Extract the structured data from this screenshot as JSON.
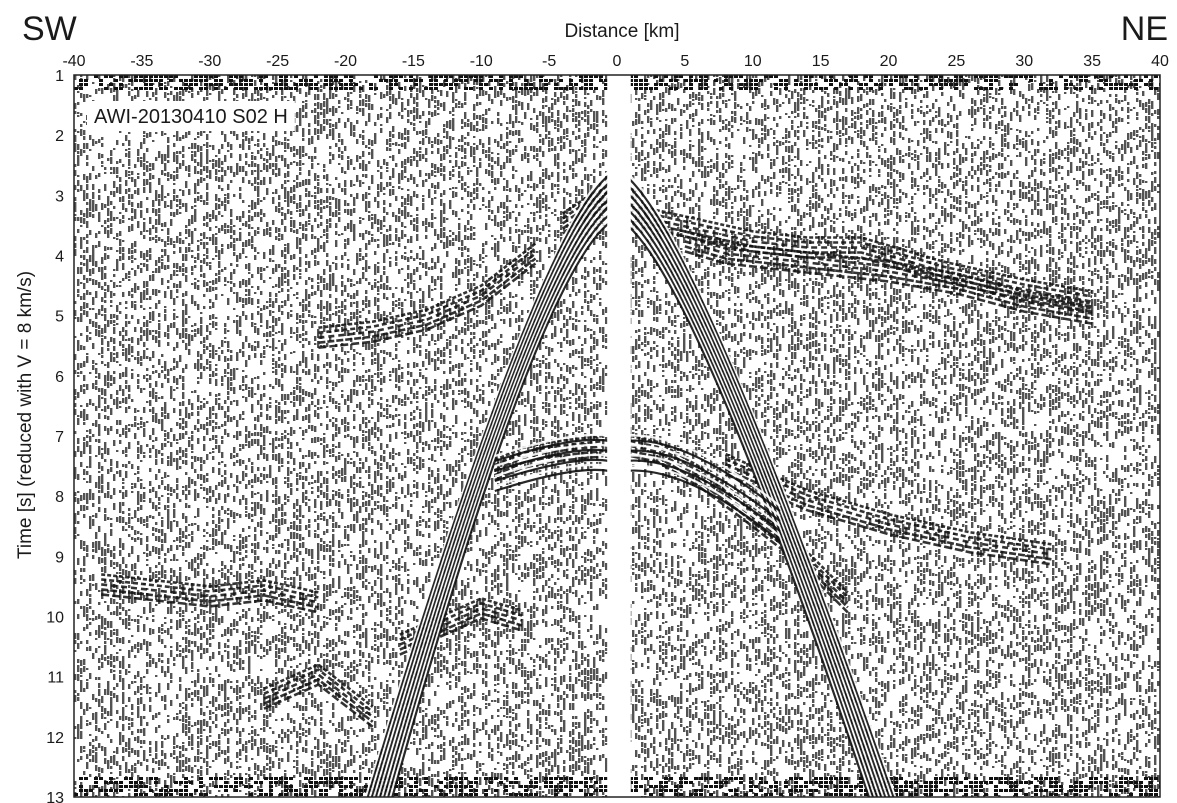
{
  "chart_data": {
    "type": "heatmap",
    "description_type": "seismic_record_section",
    "left_label": "SW",
    "right_label": "NE",
    "xlabel": "Distance [km]",
    "ylabel": "Time [s] (reduced with V = 8 km/s)",
    "panel_label": "AWI-20130410 S02 H",
    "xlim": [
      -40,
      40
    ],
    "ylim": [
      1,
      13
    ],
    "y_inverted": true,
    "x_ticks": [
      "-40",
      "-35",
      "-30",
      "-25",
      "-20",
      "-15",
      "-10",
      "-5",
      "0",
      "5",
      "10",
      "15",
      "20",
      "25",
      "30",
      "35",
      "40"
    ],
    "y_ticks": [
      "1",
      "2",
      "3",
      "4",
      "5",
      "6",
      "7",
      "8",
      "9",
      "10",
      "11",
      "12",
      "13"
    ],
    "colors": {
      "trace": "#111111",
      "background": "#ffffff",
      "frame": "#222222"
    },
    "gap_km": [
      -0.5,
      0.5
    ],
    "first_arrival": {
      "apex_time_s": 2.6,
      "apex_km": 0,
      "slope_s_per_km_left": 0.58,
      "slope_s_per_km_right": 0.6
    },
    "second_phase_apex_time_s": 7.0,
    "reflections": [
      {
        "x": [
          -4,
          -2,
          0
        ],
        "t": [
          3.3,
          3.0,
          2.8
        ]
      },
      {
        "x": [
          -22,
          -18,
          -14,
          -10,
          -6
        ],
        "t": [
          5.2,
          5.1,
          4.9,
          4.5,
          3.8
        ]
      },
      {
        "x": [
          2,
          6,
          10,
          14,
          18,
          24,
          30,
          35
        ],
        "t": [
          3.2,
          3.4,
          3.6,
          3.7,
          3.7,
          4.1,
          4.4,
          4.6
        ]
      },
      {
        "x": [
          5,
          8,
          12,
          16,
          20,
          25,
          30,
          35
        ],
        "t": [
          3.6,
          3.8,
          3.9,
          4.0,
          4.1,
          4.3,
          4.6,
          4.8
        ]
      },
      {
        "x": [
          -38,
          -34,
          -30,
          -26,
          -22
        ],
        "t": [
          9.3,
          9.4,
          9.5,
          9.4,
          9.6
        ]
      },
      {
        "x": [
          -9,
          -7,
          -5,
          -3,
          -1
        ],
        "t": [
          7.4,
          7.2,
          7.1,
          7.05,
          7.0
        ]
      },
      {
        "x": [
          1,
          3,
          6,
          9,
          13,
          17
        ],
        "t": [
          7.0,
          7.1,
          7.5,
          8.0,
          8.7,
          9.6
        ]
      },
      {
        "x": [
          8,
          14,
          20,
          26,
          32
        ],
        "t": [
          7.3,
          7.9,
          8.3,
          8.6,
          8.8
        ]
      },
      {
        "x": [
          -16,
          -13,
          -10,
          -7
        ],
        "t": [
          10.3,
          10.0,
          9.7,
          9.9
        ]
      },
      {
        "x": [
          -26,
          -22,
          -18
        ],
        "t": [
          11.2,
          10.8,
          11.5
        ]
      }
    ]
  }
}
